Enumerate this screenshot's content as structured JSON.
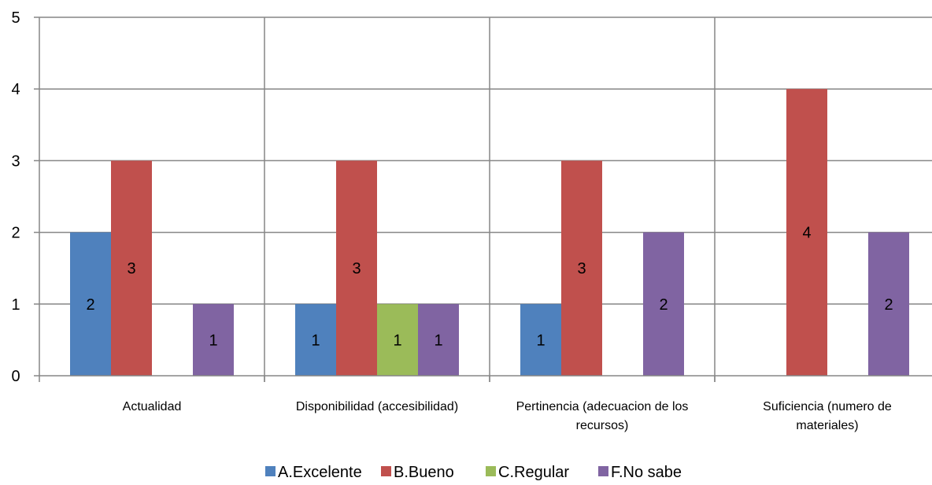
{
  "chart_data": {
    "type": "bar",
    "categories": [
      [
        "Actualidad"
      ],
      [
        "Disponibilidad (accesibilidad)"
      ],
      [
        "Pertinencia (adecuacion de los",
        "recursos)"
      ],
      [
        "Suficiencia (numero de",
        "materiales)"
      ]
    ],
    "series": [
      {
        "name": "A.Excelente",
        "color": "#4f81bd",
        "values": [
          2,
          1,
          1,
          null
        ]
      },
      {
        "name": "B.Bueno",
        "color": "#c0504d",
        "values": [
          3,
          3,
          3,
          4
        ]
      },
      {
        "name": "C.Regular",
        "color": "#9bbb59",
        "values": [
          null,
          1,
          null,
          null
        ]
      },
      {
        "name": "F.No sabe",
        "color": "#8064a2",
        "values": [
          1,
          1,
          2,
          2
        ]
      }
    ],
    "ylim": [
      0,
      5
    ],
    "yticks": [
      0,
      1,
      2,
      3,
      4,
      5
    ],
    "grid": true,
    "legend_position": "bottom"
  }
}
